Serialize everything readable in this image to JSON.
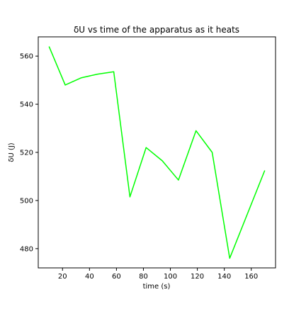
{
  "chart_data": {
    "type": "line",
    "title": "δU vs time of the apparatus as it heats",
    "xlabel": "time (s)",
    "ylabel": "δU (J)",
    "xlim": [
      2.0,
      178.0
    ],
    "ylim": [
      472.0,
      568.0
    ],
    "xticks": [
      20,
      40,
      60,
      80,
      100,
      120,
      140,
      160
    ],
    "yticks": [
      480,
      500,
      520,
      540,
      560
    ],
    "grid": false,
    "series": [
      {
        "color": "#00ff00",
        "x": [
          10,
          22,
          34,
          46,
          58,
          70,
          82,
          94,
          106,
          119,
          131,
          144,
          170
        ],
        "y": [
          564,
          548,
          551,
          552.5,
          553.5,
          501.5,
          522,
          516.5,
          508.5,
          529,
          520,
          476,
          512.5
        ]
      }
    ]
  }
}
